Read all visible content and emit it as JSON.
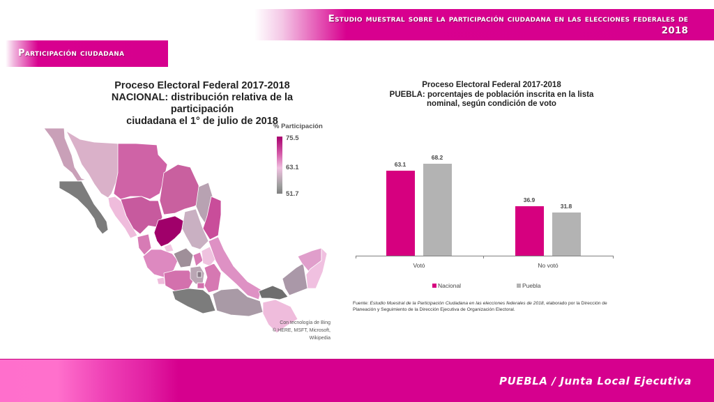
{
  "header": {
    "title_line1": "Estudio muestral sobre la participación ciudadana en las elecciones federales de",
    "title_line2": "2018",
    "color": "#d6008e"
  },
  "section": {
    "title": "Participación ciudadana"
  },
  "map": {
    "title_line1": "Proceso Electoral Federal 2017-2018",
    "title_line2": "NACIONAL: distribución relativa de la participación",
    "title_line3": "ciudadana el 1° de julio de 2018",
    "legend": {
      "title": "% Participación",
      "max": "75.5",
      "mid": "63.1",
      "min": "51.7",
      "colors": {
        "high": "#a8006e",
        "mid": "#f0c0e0",
        "low": "#808080"
      }
    },
    "credits_line1": "Con tecnología de Bing",
    "credits_line2": "© HERE, MSFT, Microsoft, Wikipedia"
  },
  "chart": {
    "title_line1": "Proceso Electoral Federal 2017-2018",
    "title_line2": "PUEBLA: porcentajes de población inscrita en la lista",
    "title_line3": "nominal, según condición de voto",
    "legend": [
      {
        "name": "Nacional",
        "color": "#d6007f"
      },
      {
        "name": "Puebla",
        "color": "#b3b3b3"
      }
    ],
    "source_prefix": "Fuente: ",
    "source_italic": "Estudio Muestral de la Participación Ciudadana  en las elecciones federales de 2018,",
    "source_rest": " elaborado por la Dirección de Planeación  y Seguimiento de la Dirección Ejecutiva de Organización Electoral."
  },
  "chart_data": {
    "type": "bar",
    "title": "Proceso Electoral Federal 2017-2018 — PUEBLA: porcentajes de población inscrita en la lista nominal, según condición de voto",
    "categories": [
      "Votó",
      "No votó"
    ],
    "series": [
      {
        "name": "Nacional",
        "values": [
          63.1,
          36.9
        ],
        "color": "#d6007f"
      },
      {
        "name": "Puebla",
        "values": [
          68.2,
          31.8
        ],
        "color": "#b3b3b3"
      }
    ],
    "labels": [
      [
        "63.1",
        "36.9"
      ],
      [
        "68.2",
        "31.8"
      ]
    ],
    "xlabel": "",
    "ylabel": "",
    "ylim": [
      0,
      80
    ],
    "grid": false,
    "legend_position": "bottom"
  },
  "footer": {
    "text": "PUEBLA / Junta Local Ejecutiva"
  }
}
